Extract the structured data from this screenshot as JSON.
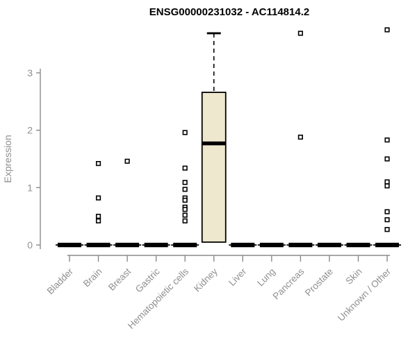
{
  "chart_data": {
    "type": "boxplot",
    "title": "ENSG00000231032 - AC114814.2",
    "ylabel": "Expression",
    "xlabel": "",
    "ylim": [
      0,
      3.8
    ],
    "yticks": [
      0,
      1,
      2,
      3
    ],
    "grid": "off",
    "legend": "none",
    "categories": [
      "Bladder",
      "Brain",
      "Breast",
      "Gastric",
      "Hematopoietic cells",
      "Kidney",
      "Liver",
      "Lung",
      "Pancreas",
      "Prostate",
      "Skin",
      "Unknown / Other"
    ],
    "series": [
      {
        "category": "Bladder",
        "q1": 0,
        "median": 0,
        "q3": 0,
        "whisker_low": 0,
        "whisker_high": 0,
        "outliers": []
      },
      {
        "category": "Brain",
        "q1": 0,
        "median": 0,
        "q3": 0,
        "whisker_low": 0,
        "whisker_high": 0,
        "outliers": [
          1.42,
          0.82,
          0.5,
          0.42
        ]
      },
      {
        "category": "Breast",
        "q1": 0,
        "median": 0,
        "q3": 0,
        "whisker_low": 0,
        "whisker_high": 0,
        "outliers": [
          1.46
        ]
      },
      {
        "category": "Gastric",
        "q1": 0,
        "median": 0,
        "q3": 0,
        "whisker_low": 0,
        "whisker_high": 0,
        "outliers": []
      },
      {
        "category": "Hematopoietic cells",
        "q1": 0,
        "median": 0,
        "q3": 0,
        "whisker_low": 0,
        "whisker_high": 0,
        "outliers": [
          1.96,
          1.34,
          1.09,
          0.97,
          0.82,
          0.78,
          0.66,
          0.62,
          0.52,
          0.42
        ]
      },
      {
        "category": "Kidney",
        "q1": 0.05,
        "median": 1.77,
        "q3": 2.66,
        "whisker_low": 0.05,
        "whisker_high": 3.69,
        "outliers": []
      },
      {
        "category": "Liver",
        "q1": 0,
        "median": 0,
        "q3": 0,
        "whisker_low": 0,
        "whisker_high": 0,
        "outliers": []
      },
      {
        "category": "Lung",
        "q1": 0,
        "median": 0,
        "q3": 0,
        "whisker_low": 0,
        "whisker_high": 0,
        "outliers": []
      },
      {
        "category": "Pancreas",
        "q1": 0,
        "median": 0,
        "q3": 0,
        "whisker_low": 0,
        "whisker_high": 0,
        "outliers": [
          3.69,
          1.88
        ]
      },
      {
        "category": "Prostate",
        "q1": 0,
        "median": 0,
        "q3": 0,
        "whisker_low": 0,
        "whisker_high": 0,
        "outliers": []
      },
      {
        "category": "Skin",
        "q1": 0,
        "median": 0,
        "q3": 0,
        "whisker_low": 0,
        "whisker_high": 0,
        "outliers": []
      },
      {
        "category": "Unknown / Other",
        "q1": 0,
        "median": 0,
        "q3": 0,
        "whisker_low": 0,
        "whisker_high": 0,
        "outliers": [
          3.75,
          1.83,
          1.5,
          1.1,
          1.03,
          0.58,
          0.44,
          0.27
        ]
      }
    ],
    "colors": {
      "background": "#ffffff",
      "box_fill": "#EDE8CE",
      "box_border": "#000000",
      "median": "#000000",
      "outlier": "#000000",
      "axis": "#8a8a8a",
      "axis_text": "#8f8f8f",
      "title": "#000000"
    }
  }
}
